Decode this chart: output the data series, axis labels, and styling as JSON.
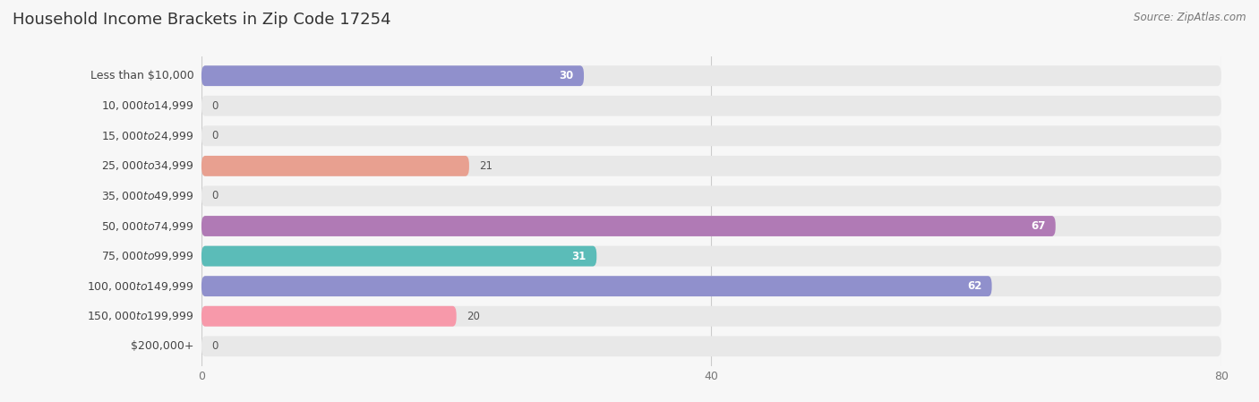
{
  "title": "Household Income Brackets in Zip Code 17254",
  "source": "Source: ZipAtlas.com",
  "categories": [
    "Less than $10,000",
    "$10,000 to $14,999",
    "$15,000 to $24,999",
    "$25,000 to $34,999",
    "$35,000 to $49,999",
    "$50,000 to $74,999",
    "$75,000 to $99,999",
    "$100,000 to $149,999",
    "$150,000 to $199,999",
    "$200,000+"
  ],
  "values": [
    30,
    0,
    0,
    21,
    0,
    67,
    31,
    62,
    20,
    0
  ],
  "bar_colors": [
    "#9090cc",
    "#f799aa",
    "#f5c98a",
    "#e8a090",
    "#aac8f0",
    "#b07ab5",
    "#5bbcb8",
    "#9090cc",
    "#f799aa",
    "#f5c98a"
  ],
  "xlim_max": 80,
  "background_color": "#f7f7f7",
  "bar_bg_color": "#e8e8e8",
  "title_fontsize": 13,
  "label_fontsize": 9,
  "value_fontsize": 8.5,
  "tick_fontsize": 9
}
